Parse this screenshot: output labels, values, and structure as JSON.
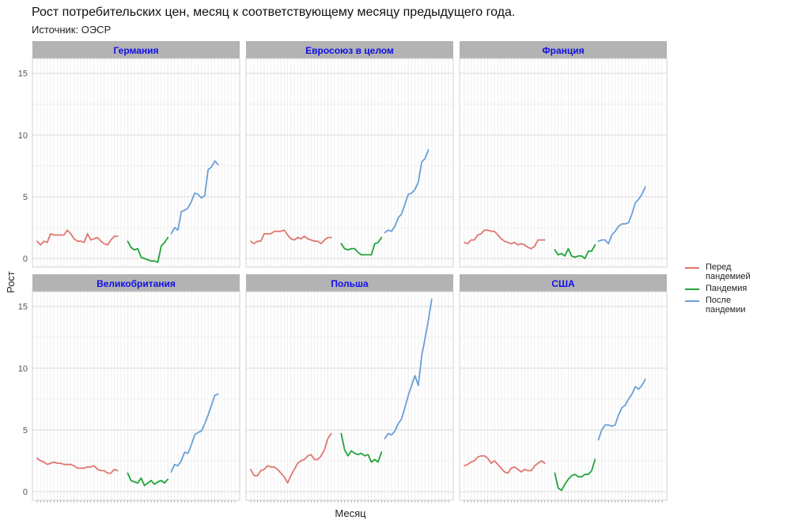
{
  "chart_data": {
    "type": "line",
    "title": "Рост потребительских цен, месяц к соответствующему месяцу предыдущего года.",
    "subtitle": "Источник: ОЭСР",
    "xlabel": "Месяц",
    "ylabel": "Рост",
    "ylim": [
      -0.7,
      16.2
    ],
    "yticks": [
      0,
      5,
      10,
      15
    ],
    "grid": true,
    "legend_position": "right",
    "months": 60,
    "series_legend": [
      {
        "name": "Перед пандемией",
        "color": "#e0776f"
      },
      {
        "name": "Пандемия",
        "color": "#22a33a"
      },
      {
        "name": "После пандемии",
        "color": "#6a9fd8"
      }
    ],
    "panels": [
      {
        "name": "Германия",
        "series": [
          {
            "name": "Перед пандемией",
            "x_start": 1,
            "values": [
              1.4,
              1.1,
              1.4,
              1.3,
              2.0,
              1.9,
              1.9,
              1.9,
              1.9,
              2.3,
              2.0,
              1.6,
              1.4,
              1.4,
              1.3,
              2.0,
              1.5,
              1.6,
              1.7,
              1.4,
              1.2,
              1.1,
              1.5,
              1.8,
              1.8
            ]
          },
          {
            "name": "Пандемия",
            "x_start": 28,
            "values": [
              1.4,
              0.9,
              0.7,
              0.8,
              0.1,
              0.0,
              -0.1,
              -0.2,
              -0.2,
              -0.3,
              1.0,
              1.3,
              1.7
            ]
          },
          {
            "name": "После пандемии",
            "x_start": 41,
            "values": [
              2.0,
              2.5,
              2.3,
              3.8,
              3.9,
              4.1,
              4.6,
              5.3,
              5.2,
              4.9,
              5.1,
              7.2,
              7.4,
              7.9,
              7.6
            ]
          }
        ]
      },
      {
        "name": "Евросоюз в целом",
        "series": [
          {
            "name": "Перед пандемией",
            "x_start": 1,
            "values": [
              1.4,
              1.2,
              1.4,
              1.4,
              2.0,
              2.0,
              2.0,
              2.2,
              2.2,
              2.2,
              2.3,
              1.9,
              1.6,
              1.5,
              1.7,
              1.6,
              1.8,
              1.6,
              1.5,
              1.4,
              1.4,
              1.2,
              1.5,
              1.7,
              1.7
            ]
          },
          {
            "name": "Пандемия",
            "x_start": 28,
            "values": [
              1.2,
              0.8,
              0.7,
              0.8,
              0.8,
              0.5,
              0.3,
              0.3,
              0.3,
              0.3,
              1.2,
              1.3,
              1.7
            ]
          },
          {
            "name": "После пандемии",
            "x_start": 41,
            "values": [
              2.1,
              2.3,
              2.2,
              2.6,
              3.3,
              3.6,
              4.4,
              5.2,
              5.3,
              5.6,
              6.2,
              7.8,
              8.1,
              8.8
            ]
          }
        ]
      },
      {
        "name": "Франция",
        "series": [
          {
            "name": "Перед пандемией",
            "x_start": 1,
            "values": [
              1.3,
              1.2,
              1.5,
              1.5,
              1.9,
              2.0,
              2.3,
              2.3,
              2.2,
              2.2,
              1.9,
              1.6,
              1.4,
              1.3,
              1.2,
              1.3,
              1.1,
              1.2,
              1.1,
              0.9,
              0.8,
              1.0,
              1.5,
              1.5,
              1.5
            ]
          },
          {
            "name": "Пандемия",
            "x_start": 28,
            "values": [
              0.7,
              0.3,
              0.4,
              0.2,
              0.8,
              0.2,
              0.1,
              0.2,
              0.2,
              0.0,
              0.6,
              0.6,
              1.1
            ]
          },
          {
            "name": "После пандемии",
            "x_start": 41,
            "values": [
              1.4,
              1.5,
              1.5,
              1.2,
              1.9,
              2.2,
              2.6,
              2.8,
              2.8,
              2.9,
              3.6,
              4.5,
              4.8,
              5.2,
              5.8
            ]
          }
        ]
      },
      {
        "name": "Великобритания",
        "series": [
          {
            "name": "Перед пандемией",
            "x_start": 1,
            "values": [
              2.7,
              2.5,
              2.4,
              2.2,
              2.3,
              2.4,
              2.3,
              2.3,
              2.2,
              2.2,
              2.2,
              2.1,
              1.9,
              1.9,
              1.9,
              2.0,
              2.0,
              2.1,
              1.8,
              1.7,
              1.7,
              1.5,
              1.5,
              1.8,
              1.7
            ]
          },
          {
            "name": "Пандемия",
            "x_start": 28,
            "values": [
              1.5,
              0.9,
              0.8,
              0.7,
              1.1,
              0.5,
              0.7,
              0.9,
              0.6,
              0.8,
              0.9,
              0.7,
              1.0
            ]
          },
          {
            "name": "После пандемии",
            "x_start": 41,
            "values": [
              1.6,
              2.2,
              2.1,
              2.5,
              3.2,
              3.1,
              3.8,
              4.6,
              4.8,
              4.9,
              5.5,
              6.2,
              7.0,
              7.8,
              7.9
            ]
          }
        ]
      },
      {
        "name": "Польша",
        "series": [
          {
            "name": "Перед пандемией",
            "x_start": 1,
            "values": [
              1.8,
              1.3,
              1.3,
              1.7,
              1.8,
              2.1,
              2.0,
              2.0,
              1.8,
              1.5,
              1.2,
              0.7,
              1.3,
              1.8,
              2.3,
              2.5,
              2.6,
              2.9,
              3.0,
              2.6,
              2.6,
              2.9,
              3.4,
              4.3,
              4.7
            ]
          },
          {
            "name": "Пандемия",
            "x_start": 28,
            "values": [
              4.7,
              3.4,
              2.9,
              3.3,
              3.1,
              3.0,
              3.1,
              2.9,
              3.0,
              2.4,
              2.6,
              2.4,
              3.2
            ]
          },
          {
            "name": "После пандемии",
            "x_start": 41,
            "values": [
              4.3,
              4.7,
              4.6,
              4.9,
              5.5,
              5.9,
              6.8,
              7.8,
              8.6,
              9.4,
              8.6,
              11.0,
              12.4,
              13.9,
              15.6
            ]
          }
        ]
      },
      {
        "name": "США",
        "series": [
          {
            "name": "Перед пандемией",
            "x_start": 1,
            "values": [
              2.1,
              2.2,
              2.4,
              2.5,
              2.8,
              2.9,
              2.9,
              2.7,
              2.3,
              2.5,
              2.2,
              1.9,
              1.6,
              1.5,
              1.9,
              2.0,
              1.8,
              1.6,
              1.8,
              1.7,
              1.7,
              2.1,
              2.3,
              2.5,
              2.3
            ]
          },
          {
            "name": "Пандемия",
            "x_start": 28,
            "values": [
              1.5,
              0.3,
              0.1,
              0.6,
              1.0,
              1.3,
              1.4,
              1.2,
              1.2,
              1.4,
              1.4,
              1.7,
              2.6
            ]
          },
          {
            "name": "После пандемии",
            "x_start": 41,
            "values": [
              4.2,
              5.0,
              5.4,
              5.4,
              5.3,
              5.4,
              6.2,
              6.8,
              7.0,
              7.5,
              7.9,
              8.5,
              8.3,
              8.6,
              9.1
            ]
          }
        ]
      }
    ]
  }
}
